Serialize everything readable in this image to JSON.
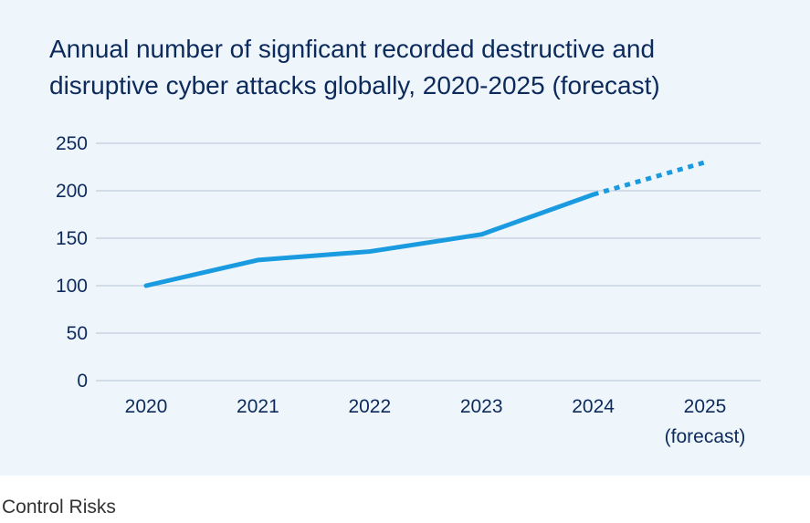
{
  "chart_data": {
    "type": "line",
    "title_lines": [
      "Annual number of signficant recorded destructive and",
      "disruptive cyber attacks globally, 2020-2025 (forecast)"
    ],
    "categories": [
      [
        "2020"
      ],
      [
        "2021"
      ],
      [
        "2022"
      ],
      [
        "2023"
      ],
      [
        "2024"
      ],
      [
        "2025",
        "(forecast)"
      ]
    ],
    "series": [
      {
        "values": [
          100,
          127,
          136,
          154,
          196,
          230
        ],
        "forecast_from_index": 4,
        "color": "#1a9be0"
      }
    ],
    "ylim": [
      0,
      250
    ],
    "yticks": [
      0,
      50,
      100,
      150,
      200,
      250
    ],
    "grid": true,
    "legend": "none"
  },
  "colors": {
    "background": "#eef6fc",
    "line": "#1a9be0",
    "grid": "#c3cede",
    "text": "#0d2a5c"
  },
  "source": "Control Risks"
}
